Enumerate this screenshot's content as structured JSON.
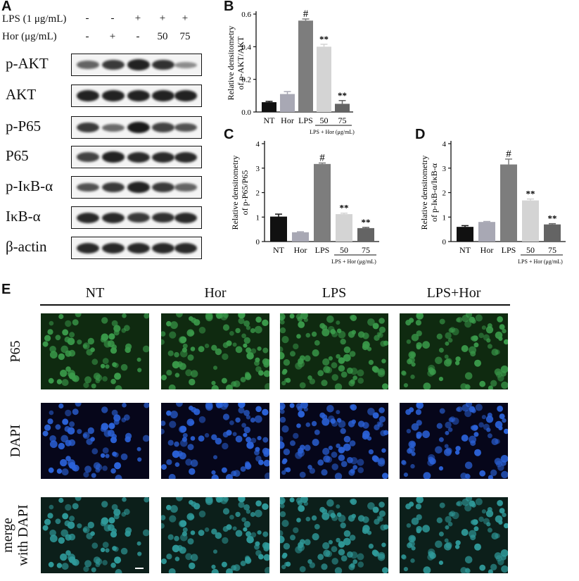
{
  "panel_letters": {
    "a": "A",
    "b": "B",
    "c": "C",
    "d": "D",
    "e": "E"
  },
  "western_blot": {
    "conditions": [
      {
        "label": "LPS (1 μg/mL)",
        "signs": [
          "-",
          "-",
          "+",
          "+",
          "+"
        ]
      },
      {
        "label": "Hor  (μg/mL)",
        "signs": [
          "-",
          "+",
          "-",
          "50",
          "75"
        ]
      }
    ],
    "rows": [
      {
        "label": "p-AKT",
        "intensities": [
          0.55,
          0.8,
          0.95,
          0.85,
          0.3
        ]
      },
      {
        "label": "AKT",
        "intensities": [
          0.95,
          0.95,
          0.95,
          0.95,
          0.95
        ]
      },
      {
        "label": "p-P65",
        "intensities": [
          0.8,
          0.5,
          1.0,
          0.75,
          0.65
        ]
      },
      {
        "label": "P65",
        "intensities": [
          0.75,
          0.95,
          0.9,
          0.9,
          0.9
        ]
      },
      {
        "label": "p-IκB-α",
        "intensities": [
          0.65,
          0.8,
          0.95,
          0.8,
          0.55
        ]
      },
      {
        "label": "IκB-α",
        "intensities": [
          0.9,
          0.9,
          0.8,
          0.85,
          0.9
        ]
      },
      {
        "label": "β-actin",
        "intensities": [
          0.9,
          0.9,
          0.9,
          0.9,
          0.9
        ]
      }
    ],
    "band_color": "#1a1a1a"
  },
  "chart_data": [
    {
      "type": "bar",
      "panel": "B",
      "categories": [
        "NT",
        "Hor",
        "LPS",
        "50",
        "75"
      ],
      "values": [
        0.06,
        0.11,
        0.56,
        0.4,
        0.05
      ],
      "errors": [
        0.005,
        0.015,
        0.01,
        0.015,
        0.02
      ],
      "annotations": [
        "",
        "",
        "#",
        "**",
        "**"
      ],
      "ylabel_line1": "Relative densitometry",
      "ylabel_line2": "of p-AKT/AKT",
      "group_label": "LPS + Hor (μg/mL)",
      "ylim": [
        0,
        0.6
      ],
      "yticks": [
        "0.0",
        "0.2",
        "0.4",
        "0.6"
      ],
      "colors": [
        "#111111",
        "#a8a8b4",
        "#7d7d7d",
        "#d4d4d4",
        "#646464"
      ]
    },
    {
      "type": "bar",
      "panel": "C",
      "categories": [
        "NT",
        "Hor",
        "LPS",
        "50",
        "75"
      ],
      "values": [
        1.02,
        0.38,
        3.17,
        1.12,
        0.55
      ],
      "errors": [
        0.1,
        0.02,
        0.04,
        0.04,
        0.03
      ],
      "annotations": [
        "",
        "",
        "#",
        "**",
        "**"
      ],
      "ylabel_line1": "Relative densitometry",
      "ylabel_line2": "of p-P65/P65",
      "group_label": "LPS + Hor (μg/mL)",
      "ylim": [
        0,
        4
      ],
      "yticks": [
        "0",
        "1",
        "2",
        "3",
        "4"
      ],
      "colors": [
        "#111111",
        "#a8a8b4",
        "#7d7d7d",
        "#d4d4d4",
        "#646464"
      ]
    },
    {
      "type": "bar",
      "panel": "D",
      "categories": [
        "NT",
        "Hor",
        "LPS",
        "50",
        "75"
      ],
      "values": [
        0.6,
        0.8,
        3.15,
        1.68,
        0.7
      ],
      "errors": [
        0.05,
        0.02,
        0.22,
        0.06,
        0.03
      ],
      "annotations": [
        "",
        "",
        "#",
        "**",
        "**"
      ],
      "ylabel_line1": "Relative densitometry",
      "ylabel_line2": "of p-IκB-α/IκB-α",
      "group_label": "LPS + Hor (μg/mL)",
      "ylim": [
        0,
        4
      ],
      "yticks": [
        "0",
        "1",
        "2",
        "3",
        "4"
      ],
      "colors": [
        "#111111",
        "#a8a8b4",
        "#7d7d7d",
        "#d4d4d4",
        "#646464"
      ]
    }
  ],
  "microscopy": {
    "columns": [
      "NT",
      "Hor",
      "LPS",
      "LPS+Hor"
    ],
    "rows": [
      {
        "label_line1": "P65",
        "label_line2": "",
        "stain": "p65"
      },
      {
        "label_line1": "DAPI",
        "label_line2": "",
        "stain": "dapi"
      },
      {
        "label_line1": "merge",
        "label_line2": "with DAPI",
        "stain": "merge"
      }
    ],
    "cell_density": [
      0.45,
      0.7,
      0.75,
      0.65
    ],
    "colors": {
      "p65_bg": "#0f2a10",
      "p65_cell": "#3a9a4a",
      "dapi_bg": "#06061a",
      "dapi_cell": "#2b62d8",
      "merge_bg": "#0c1f1a",
      "merge_cell": "#2f9a9a",
      "scale_bar": "#ffffff"
    }
  }
}
